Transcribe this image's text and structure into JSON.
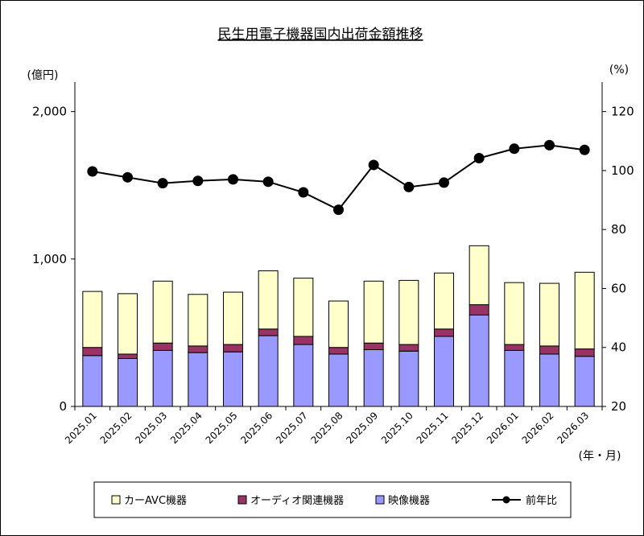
{
  "chart_data": {
    "type": "bar",
    "stacked": true,
    "title": "民生用電子機器国内出荷金額推移",
    "y_unit_left": "(億円)",
    "y_unit_right": "(%)",
    "x_unit": "(年・月)",
    "categories": [
      "2025.01",
      "2025.02",
      "2025.03",
      "2025.04",
      "2025.05",
      "2025.06",
      "2025.07",
      "2025.08",
      "2025.09",
      "2025.10",
      "2025.11",
      "2025.12",
      "2026.01",
      "2026.02",
      "2026.03"
    ],
    "left_axis": {
      "min": 0,
      "max": 2200,
      "ticks": [
        0,
        1000,
        2000
      ],
      "tick_labels": [
        "0",
        "1,000",
        "2,000"
      ]
    },
    "right_axis": {
      "min": 20,
      "max": 130,
      "ticks": [
        20,
        40,
        60,
        80,
        100,
        120
      ],
      "tick_labels": [
        "20",
        "40",
        "60",
        "80",
        "100",
        "120"
      ]
    },
    "series": [
      {
        "name": "映像機器",
        "color": "#9999ff",
        "values": [
          345,
          325,
          380,
          365,
          370,
          480,
          420,
          355,
          385,
          375,
          475,
          620,
          380,
          355,
          340
        ]
      },
      {
        "name": "オーディオ関連機器",
        "color": "#993366",
        "values": [
          55,
          30,
          50,
          45,
          50,
          45,
          55,
          45,
          45,
          45,
          50,
          70,
          40,
          55,
          50
        ]
      },
      {
        "name": "カーAVC機器",
        "color": "#ffffcc",
        "values": [
          380,
          410,
          420,
          350,
          355,
          395,
          395,
          315,
          420,
          435,
          380,
          400,
          420,
          425,
          520
        ]
      },
      {
        "name": "前年比",
        "type": "line",
        "axis": "right",
        "color": "#000000",
        "values": [
          99.7,
          97.7,
          95.7,
          96.5,
          97.0,
          96.2,
          92.6,
          86.7,
          101.9,
          94.4,
          95.9,
          104.2,
          107.4,
          108.6,
          107.0
        ]
      }
    ],
    "legend": {
      "position": "bottom",
      "order": [
        "カーAVC機器",
        "オーディオ関連機器",
        "映像機器",
        "前年比"
      ]
    },
    "grid": false
  }
}
